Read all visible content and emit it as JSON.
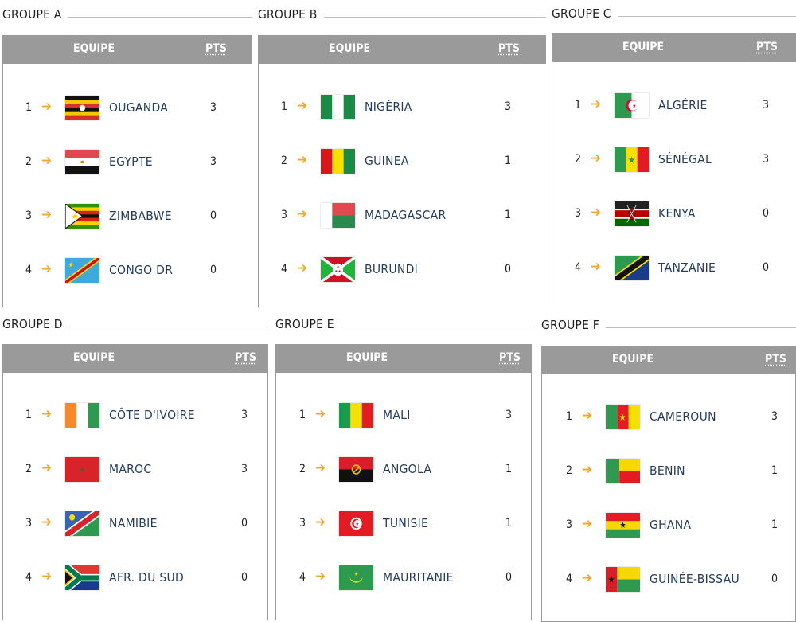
{
  "table_headers": {
    "team": "EQUIPE",
    "points": "PTS"
  },
  "accent_color": "#f5a623",
  "groups": [
    {
      "title": "GROUPE A",
      "teams": [
        {
          "rank": "1",
          "name": "OUGANDA",
          "flag": "uganda-flag",
          "pts": "3"
        },
        {
          "rank": "2",
          "name": "EGYPTE",
          "flag": "egypt-flag",
          "pts": "3"
        },
        {
          "rank": "3",
          "name": "ZIMBABWE",
          "flag": "zimbabwe-flag",
          "pts": "0"
        },
        {
          "rank": "4",
          "name": "CONGO DR",
          "flag": "congo-dr-flag",
          "pts": "0"
        }
      ]
    },
    {
      "title": "GROUPE B",
      "teams": [
        {
          "rank": "1",
          "name": "NIGÉRIA",
          "flag": "nigeria-flag",
          "pts": "3"
        },
        {
          "rank": "2",
          "name": "GUINEA",
          "flag": "guinea-flag",
          "pts": "1"
        },
        {
          "rank": "3",
          "name": "MADAGASCAR",
          "flag": "madagascar-flag",
          "pts": "1"
        },
        {
          "rank": "4",
          "name": "BURUNDI",
          "flag": "burundi-flag",
          "pts": "0"
        }
      ]
    },
    {
      "title": "GROUPE C",
      "teams": [
        {
          "rank": "1",
          "name": "ALGÉRIE",
          "flag": "algeria-flag",
          "pts": "3"
        },
        {
          "rank": "2",
          "name": "SÉNÉGAL",
          "flag": "senegal-flag",
          "pts": "3"
        },
        {
          "rank": "3",
          "name": "KENYA",
          "flag": "kenya-flag",
          "pts": "0"
        },
        {
          "rank": "4",
          "name": "TANZANIE",
          "flag": "tanzania-flag",
          "pts": "0"
        }
      ]
    },
    {
      "title": "GROUPE D",
      "teams": [
        {
          "rank": "1",
          "name": "CÔTE D'IVOIRE",
          "flag": "cote-divoire-flag",
          "pts": "3"
        },
        {
          "rank": "2",
          "name": "MAROC",
          "flag": "morocco-flag",
          "pts": "3"
        },
        {
          "rank": "3",
          "name": "NAMIBIE",
          "flag": "namibia-flag",
          "pts": "0"
        },
        {
          "rank": "4",
          "name": "AFR. DU SUD",
          "flag": "south-africa-flag",
          "pts": "0"
        }
      ]
    },
    {
      "title": "GROUPE E",
      "teams": [
        {
          "rank": "1",
          "name": "MALI",
          "flag": "mali-flag",
          "pts": "3"
        },
        {
          "rank": "2",
          "name": "ANGOLA",
          "flag": "angola-flag",
          "pts": "1"
        },
        {
          "rank": "3",
          "name": "TUNISIE",
          "flag": "tunisia-flag",
          "pts": "1"
        },
        {
          "rank": "4",
          "name": "MAURITANIE",
          "flag": "mauritania-flag",
          "pts": "0"
        }
      ]
    },
    {
      "title": "GROUPE F",
      "teams": [
        {
          "rank": "1",
          "name": "CAMEROUN",
          "flag": "cameroon-flag",
          "pts": "3"
        },
        {
          "rank": "2",
          "name": "BENIN",
          "flag": "benin-flag",
          "pts": "1"
        },
        {
          "rank": "3",
          "name": "GHANA",
          "flag": "ghana-flag",
          "pts": "1"
        },
        {
          "rank": "4",
          "name": "GUINÉE-BISSAU",
          "flag": "guinea-bissau-flag",
          "pts": "0"
        }
      ]
    }
  ]
}
